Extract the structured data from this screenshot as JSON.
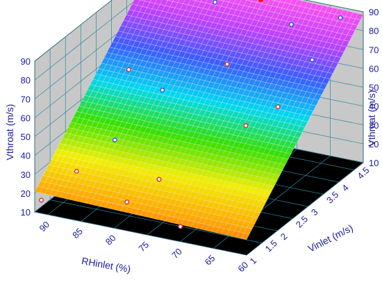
{
  "chart_data": {
    "type": "surface3d",
    "title": "",
    "x_axis": {
      "label": "RHinlet (%)",
      "ticks": [
        90,
        85,
        80,
        75,
        70,
        65,
        60
      ],
      "range": [
        60,
        92
      ]
    },
    "y_axis": {
      "label": "Vinlet (m/s)",
      "ticks": [
        "1",
        "1.5",
        "2",
        "2.5",
        "3",
        "3.5",
        "4",
        "4.5"
      ],
      "range": [
        1,
        4.8
      ]
    },
    "z_axis": {
      "label_left": "Vthroat (m/s)",
      "label_right": "Vthroat (m/s)",
      "ticks": [
        10,
        20,
        30,
        40,
        50,
        60,
        70,
        80,
        90
      ],
      "range": [
        10,
        90
      ]
    },
    "surface": {
      "description_model": "Vthroat ≈ 18.5·Vinlet + 1",
      "colormap": [
        "#ff3a1a",
        "#ffa600",
        "#f2ee00",
        "#36e000",
        "#00d8f0",
        "#3a5cff",
        "#c040ff",
        "#ff55ee"
      ]
    },
    "grid": true,
    "points": [
      {
        "rh": 91,
        "vin": 1.0,
        "vth": 17,
        "group": "red"
      },
      {
        "rh": 88,
        "vin": 1.5,
        "vth": 28,
        "group": "red"
      },
      {
        "rh": 85,
        "vin": 2.1,
        "vth": 39,
        "group": "blue"
      },
      {
        "rh": 79,
        "vin": 1.2,
        "vth": 22,
        "group": "red"
      },
      {
        "rh": 76,
        "vin": 1.6,
        "vth": 31,
        "group": "red"
      },
      {
        "rh": 70,
        "vin": 1.0,
        "vth": 18,
        "group": "red"
      },
      {
        "rh": 88,
        "vin": 3.2,
        "vth": 60,
        "group": "red"
      },
      {
        "rh": 82,
        "vin": 3.0,
        "vth": 56,
        "group": "blue"
      },
      {
        "rh": 75,
        "vin": 3.6,
        "vth": 67,
        "group": "red"
      },
      {
        "rh": 68,
        "vin": 2.7,
        "vth": 51,
        "group": "red"
      },
      {
        "rh": 65,
        "vin": 3.1,
        "vth": 58,
        "group": "red"
      },
      {
        "rh": 87,
        "vin": 4.6,
        "vth": 86,
        "group": "blue"
      },
      {
        "rh": 81,
        "vin": 4.5,
        "vth": 84,
        "group": "blue"
      },
      {
        "rh": 75,
        "vin": 4.7,
        "vth": 87,
        "group": "red"
      },
      {
        "rh": 69,
        "vin": 4.4,
        "vth": 82,
        "group": "blue"
      },
      {
        "rh": 63,
        "vin": 4.7,
        "vth": 86,
        "group": "blue"
      },
      {
        "rh": 64,
        "vin": 4.0,
        "vth": 72,
        "group": "blue"
      },
      {
        "rh": 92,
        "vin": 4.8,
        "vth": 86,
        "group": "blue"
      }
    ],
    "point_colors": {
      "red": "#d03030",
      "blue": "#2a52d8"
    },
    "highlight_point": {
      "rh": 75,
      "vin": 4.7,
      "vth": 87,
      "color": "#ff1010"
    }
  }
}
